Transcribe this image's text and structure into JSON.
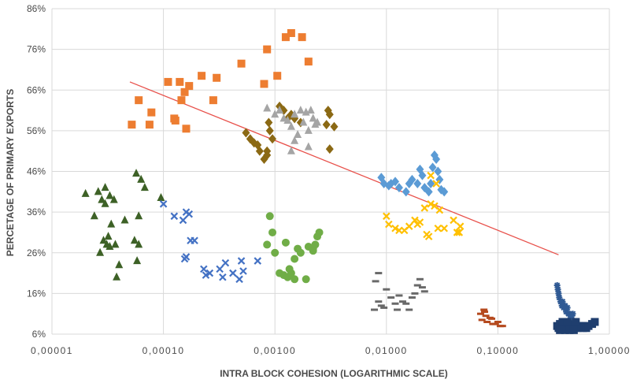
{
  "chart_data": {
    "type": "scatter",
    "title": "",
    "xlabel": "INTRA BLOCK COHESION (LOGARITHMIC SCALE)",
    "ylabel": "PERCETAGE OF PRIMARY EXPORTS",
    "x_scale": "log",
    "xlim": [
      1e-05,
      1.0
    ],
    "ylim": [
      6,
      86
    ],
    "grid": true,
    "legend": "none",
    "x_ticks": [
      1e-05,
      0.0001,
      0.001,
      0.01,
      0.1,
      1.0
    ],
    "x_tick_labels": [
      "0,00001",
      "0,00010",
      "0,00100",
      "0,01000",
      "0,10000",
      "1,00000"
    ],
    "y_ticks": [
      6,
      16,
      26,
      36,
      46,
      56,
      66,
      76,
      86
    ],
    "y_tick_labels": [
      "6%",
      "16%",
      "26%",
      "36%",
      "46%",
      "56%",
      "66%",
      "76%",
      "86%"
    ],
    "trendline": {
      "color": "#e8504a",
      "points": [
        [
          5e-05,
          68
        ],
        [
          0.35,
          25.5
        ]
      ]
    },
    "series": [
      {
        "marker": "triangle",
        "color": "#3d6126",
        "points": [
          [
            2e-05,
            40.5
          ],
          [
            2.4e-05,
            35
          ],
          [
            2.6e-05,
            41
          ],
          [
            2.7e-05,
            26
          ],
          [
            2.8e-05,
            39
          ],
          [
            2.9e-05,
            29
          ],
          [
            3e-05,
            42
          ],
          [
            3e-05,
            38
          ],
          [
            3.1e-05,
            28
          ],
          [
            3.2e-05,
            30
          ],
          [
            3.3e-05,
            40
          ],
          [
            3.3e-05,
            27.5
          ],
          [
            3.4e-05,
            33
          ],
          [
            3.6e-05,
            39
          ],
          [
            3.7e-05,
            28
          ],
          [
            3.8e-05,
            20
          ],
          [
            4e-05,
            23
          ],
          [
            4.5e-05,
            34
          ],
          [
            5.5e-05,
            29
          ],
          [
            5.7e-05,
            45.5
          ],
          [
            5.8e-05,
            24
          ],
          [
            6e-05,
            35
          ],
          [
            6.3e-05,
            44
          ],
          [
            6.8e-05,
            42
          ],
          [
            6e-05,
            28
          ],
          [
            9.5e-05,
            39.5
          ]
        ]
      },
      {
        "marker": "square",
        "color": "#ed7d31",
        "points": [
          [
            5.2e-05,
            57.5
          ],
          [
            6e-05,
            63.5
          ],
          [
            7.5e-05,
            57.5
          ],
          [
            7.8e-05,
            60.5
          ],
          [
            0.00011,
            68
          ],
          [
            0.000125,
            59
          ],
          [
            0.000128,
            58.5
          ],
          [
            0.00014,
            68
          ],
          [
            0.000145,
            63.5
          ],
          [
            0.000155,
            65.5
          ],
          [
            0.00016,
            56.5
          ],
          [
            0.00017,
            67
          ],
          [
            0.00022,
            69.5
          ],
          [
            0.00028,
            63.5
          ],
          [
            0.0003,
            69
          ],
          [
            0.0005,
            72.5
          ],
          [
            0.0008,
            67.5
          ],
          [
            0.00085,
            76
          ],
          [
            0.00105,
            69.5
          ],
          [
            0.00125,
            79
          ],
          [
            0.0014,
            80
          ],
          [
            0.00175,
            79
          ],
          [
            0.002,
            73
          ]
        ]
      },
      {
        "marker": "x",
        "color": "#4472c4",
        "points": [
          [
            0.0001,
            38
          ],
          [
            0.000125,
            35
          ],
          [
            0.00015,
            34
          ],
          [
            0.00016,
            36
          ],
          [
            0.00017,
            35.5
          ],
          [
            0.000175,
            29
          ],
          [
            0.00019,
            29
          ],
          [
            0.00016,
            25
          ],
          [
            0.000155,
            24.5
          ],
          [
            0.00023,
            22
          ],
          [
            0.00024,
            20.5
          ],
          [
            0.00026,
            21
          ],
          [
            0.00032,
            22
          ],
          [
            0.00034,
            20
          ],
          [
            0.00036,
            23.5
          ],
          [
            0.00042,
            21
          ],
          [
            0.0005,
            24
          ],
          [
            0.00052,
            21.5
          ],
          [
            0.00048,
            19.5
          ],
          [
            0.0007,
            24
          ]
        ]
      },
      {
        "marker": "diamond",
        "color": "#8b6914",
        "points": [
          [
            0.00055,
            55.5
          ],
          [
            0.0006,
            54
          ],
          [
            0.00065,
            53
          ],
          [
            0.0007,
            52.5
          ],
          [
            0.00073,
            51
          ],
          [
            0.0008,
            49
          ],
          [
            0.00085,
            51
          ],
          [
            0.0009,
            56
          ],
          [
            0.00095,
            54
          ],
          [
            0.00088,
            58
          ],
          [
            0.0011,
            62
          ],
          [
            0.0012,
            61
          ],
          [
            0.0013,
            59
          ],
          [
            0.0014,
            60
          ],
          [
            0.0015,
            59
          ],
          [
            0.0017,
            58
          ],
          [
            0.003,
            61
          ],
          [
            0.0031,
            60
          ],
          [
            0.0034,
            57
          ],
          [
            0.0029,
            57.5
          ],
          [
            0.0031,
            51.5
          ],
          [
            0.00085,
            50
          ]
        ]
      },
      {
        "marker": "triangle",
        "color": "#a5a5a5",
        "points": [
          [
            0.00085,
            61.5
          ],
          [
            0.001,
            60
          ],
          [
            0.0011,
            61
          ],
          [
            0.0012,
            59
          ],
          [
            0.0013,
            58.5
          ],
          [
            0.0014,
            57
          ],
          [
            0.0015,
            60
          ],
          [
            0.0015,
            53.5
          ],
          [
            0.0014,
            51
          ],
          [
            0.0016,
            55
          ],
          [
            0.0017,
            61
          ],
          [
            0.0018,
            58
          ],
          [
            0.002,
            56
          ],
          [
            0.0021,
            61
          ],
          [
            0.0022,
            59
          ],
          [
            0.0023,
            57.5
          ],
          [
            0.0024,
            58
          ],
          [
            0.002,
            52
          ],
          [
            0.0019,
            60.5
          ]
        ]
      },
      {
        "marker": "circle",
        "color": "#70ad47",
        "points": [
          [
            0.00085,
            28
          ],
          [
            0.0009,
            35
          ],
          [
            0.00095,
            31
          ],
          [
            0.001,
            26
          ],
          [
            0.0011,
            21
          ],
          [
            0.0012,
            20.5
          ],
          [
            0.00125,
            28.5
          ],
          [
            0.0013,
            20
          ],
          [
            0.00135,
            22
          ],
          [
            0.0014,
            21
          ],
          [
            0.0015,
            19.5
          ],
          [
            0.0015,
            24.5
          ],
          [
            0.0016,
            27
          ],
          [
            0.0017,
            26
          ],
          [
            0.0019,
            19.5
          ],
          [
            0.002,
            27.5
          ],
          [
            0.0022,
            27
          ],
          [
            0.0023,
            28
          ],
          [
            0.0024,
            30
          ],
          [
            0.0025,
            31
          ],
          [
            0.0022,
            26.5
          ]
        ]
      },
      {
        "marker": "dash",
        "color": "#696969",
        "points": [
          [
            0.0078,
            12
          ],
          [
            0.0085,
            14
          ],
          [
            0.009,
            13
          ],
          [
            0.0095,
            12.5
          ],
          [
            0.01,
            17
          ],
          [
            0.008,
            19
          ],
          [
            0.0085,
            21
          ],
          [
            0.011,
            15
          ],
          [
            0.012,
            13.5
          ],
          [
            0.013,
            15.5
          ],
          [
            0.014,
            14
          ],
          [
            0.015,
            13.5
          ],
          [
            0.016,
            12
          ],
          [
            0.017,
            15
          ],
          [
            0.018,
            16
          ],
          [
            0.019,
            18
          ],
          [
            0.02,
            19.5
          ],
          [
            0.021,
            17.5
          ],
          [
            0.022,
            16.5
          ],
          [
            0.0125,
            12
          ]
        ]
      },
      {
        "marker": "diamond",
        "color": "#5b9bd5",
        "points": [
          [
            0.009,
            44.5
          ],
          [
            0.0095,
            43
          ],
          [
            0.0105,
            42.5
          ],
          [
            0.011,
            43
          ],
          [
            0.012,
            43.5
          ],
          [
            0.013,
            42
          ],
          [
            0.015,
            41
          ],
          [
            0.016,
            43
          ],
          [
            0.017,
            44
          ],
          [
            0.019,
            43
          ],
          [
            0.02,
            46.5
          ],
          [
            0.021,
            45
          ],
          [
            0.022,
            42
          ],
          [
            0.024,
            41
          ],
          [
            0.025,
            43
          ],
          [
            0.026,
            47
          ],
          [
            0.027,
            50
          ],
          [
            0.028,
            49
          ],
          [
            0.029,
            46
          ],
          [
            0.03,
            44
          ],
          [
            0.031,
            41.5
          ],
          [
            0.033,
            41
          ]
        ]
      },
      {
        "marker": "x",
        "color": "#ffc000",
        "points": [
          [
            0.01,
            35
          ],
          [
            0.0105,
            33
          ],
          [
            0.012,
            32
          ],
          [
            0.013,
            31.5
          ],
          [
            0.0145,
            31.5
          ],
          [
            0.016,
            32.5
          ],
          [
            0.018,
            34
          ],
          [
            0.019,
            33
          ],
          [
            0.02,
            33.5
          ],
          [
            0.022,
            37
          ],
          [
            0.023,
            30.5
          ],
          [
            0.024,
            30
          ],
          [
            0.025,
            38
          ],
          [
            0.027,
            37.5
          ],
          [
            0.029,
            32
          ],
          [
            0.03,
            36.5
          ],
          [
            0.033,
            32
          ],
          [
            0.04,
            34
          ],
          [
            0.043,
            31
          ],
          [
            0.045,
            31
          ],
          [
            0.046,
            32.5
          ],
          [
            0.025,
            45
          ],
          [
            0.028,
            43
          ]
        ]
      },
      {
        "marker": "dash",
        "color": "#b54a1e",
        "points": [
          [
            0.07,
            11
          ],
          [
            0.072,
            9.5
          ],
          [
            0.075,
            12
          ],
          [
            0.078,
            10.5
          ],
          [
            0.08,
            9
          ],
          [
            0.085,
            10
          ],
          [
            0.09,
            8.5
          ],
          [
            0.095,
            8.5
          ],
          [
            0.1,
            9
          ],
          [
            0.105,
            8
          ],
          [
            0.11,
            8
          ],
          [
            0.076,
            11.5
          ],
          [
            0.088,
            9.8
          ]
        ]
      },
      {
        "marker": "star",
        "color": "#305a94",
        "points": [
          [
            0.34,
            18
          ],
          [
            0.345,
            17
          ],
          [
            0.35,
            16
          ],
          [
            0.355,
            15
          ],
          [
            0.365,
            14
          ],
          [
            0.375,
            13
          ],
          [
            0.38,
            14
          ],
          [
            0.39,
            12.5
          ],
          [
            0.4,
            13
          ],
          [
            0.41,
            11.5
          ],
          [
            0.42,
            12.5
          ],
          [
            0.43,
            11
          ],
          [
            0.44,
            11
          ],
          [
            0.45,
            10
          ],
          [
            0.46,
            10.5
          ],
          [
            0.47,
            11
          ]
        ]
      },
      {
        "marker": "square",
        "color": "#1f3e6e",
        "points": [
          [
            0.34,
            8
          ],
          [
            0.35,
            7.5
          ],
          [
            0.36,
            8.5
          ],
          [
            0.37,
            7.5
          ],
          [
            0.38,
            8
          ],
          [
            0.39,
            7.5
          ],
          [
            0.4,
            8.5
          ],
          [
            0.41,
            8
          ],
          [
            0.42,
            7.5
          ],
          [
            0.43,
            8
          ],
          [
            0.44,
            7.5
          ],
          [
            0.45,
            8.5
          ],
          [
            0.46,
            8
          ],
          [
            0.47,
            7.5
          ],
          [
            0.48,
            8
          ],
          [
            0.49,
            7.5
          ],
          [
            0.5,
            8
          ],
          [
            0.52,
            7.5
          ],
          [
            0.54,
            8
          ],
          [
            0.56,
            8
          ],
          [
            0.58,
            7.5
          ],
          [
            0.6,
            8
          ],
          [
            0.62,
            7.5
          ],
          [
            0.65,
            8
          ],
          [
            0.7,
            8.5
          ],
          [
            0.74,
            9
          ],
          [
            0.36,
            7
          ],
          [
            0.4,
            7
          ],
          [
            0.44,
            7
          ],
          [
            0.48,
            7
          ],
          [
            0.38,
            9
          ],
          [
            0.42,
            9
          ],
          [
            0.5,
            9
          ]
        ]
      }
    ]
  }
}
